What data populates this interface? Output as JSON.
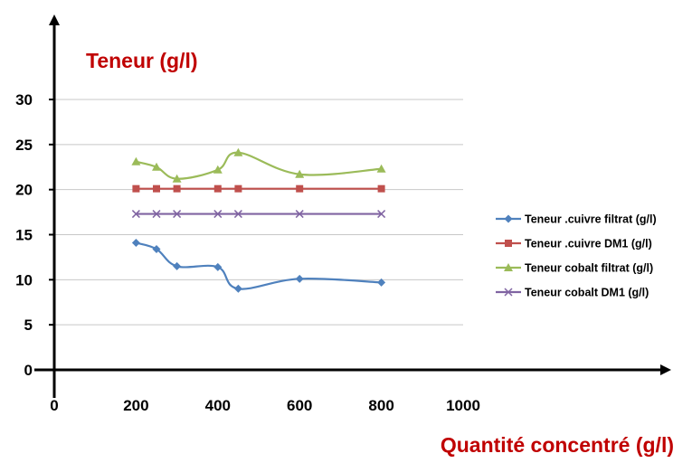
{
  "chart_data": {
    "type": "line",
    "title": "",
    "xlabel": "Quantité concentré (g/l)",
    "ylabel": "Teneur (g/l)",
    "label_color": "#C00000",
    "xlim": [
      0,
      1000
    ],
    "ylim": [
      0,
      30
    ],
    "x_ticks": [
      0,
      200,
      400,
      600,
      800,
      1000
    ],
    "y_ticks": [
      0,
      5,
      10,
      15,
      20,
      25,
      30
    ],
    "grid": "horizontal",
    "legend_position": "right",
    "x": [
      200,
      250,
      300,
      400,
      450,
      600,
      800
    ],
    "series": [
      {
        "name": "Teneur  .cuivre filtrat (g/l)",
        "color": "#4F81BD",
        "marker": "diamond",
        "values": [
          14.1,
          13.4,
          11.5,
          11.4,
          9.0,
          10.1,
          9.7
        ]
      },
      {
        "name": "Teneur  .cuivre DM1 (g/l)",
        "color": "#C0504D",
        "marker": "square",
        "values": [
          20.1,
          20.1,
          20.1,
          20.1,
          20.1,
          20.1,
          20.1
        ]
      },
      {
        "name": "Teneur cobalt filtrat (g/l)",
        "color": "#9BBB59",
        "marker": "triangle",
        "values": [
          23.1,
          22.5,
          21.2,
          22.2,
          24.1,
          21.7,
          22.3
        ]
      },
      {
        "name": "Teneur cobalt DM1 (g/l)",
        "color": "#8064A2",
        "marker": "x",
        "values": [
          17.3,
          17.3,
          17.3,
          17.3,
          17.3,
          17.3,
          17.3
        ]
      }
    ]
  }
}
